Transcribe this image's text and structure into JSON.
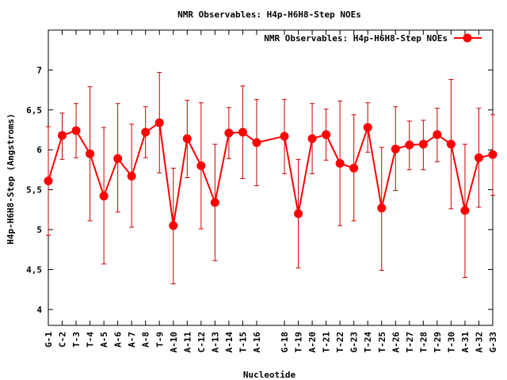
{
  "chart_data": {
    "type": "line",
    "title": "NMR Observables: H4p-H6H8-Step NOEs",
    "xlabel": "Nucleotide",
    "ylabel": "H4p-H6H8-Step (Angstroms)",
    "ylim": [
      3.8,
      7.5
    ],
    "yticks": [
      4,
      4.5,
      5,
      5.5,
      6,
      6.5,
      7
    ],
    "ytick_labels": [
      "4",
      "4,5",
      "5",
      "5,5",
      "6",
      "6,5",
      "7"
    ],
    "xlim": [
      1,
      33
    ],
    "legend": {
      "position": "top-right",
      "label": "NMR Observables: H4p-H6H8-Step NOEs"
    },
    "colors": {
      "series": "#ff0000",
      "errorbar": "#cc0000",
      "axis": "#000000"
    },
    "categories": [
      "G-1",
      "C-2",
      "T-3",
      "T-4",
      "A-5",
      "A-6",
      "A-7",
      "A-8",
      "T-9",
      "A-10",
      "A-11",
      "C-12",
      "A-13",
      "A-14",
      "T-15",
      "A-16",
      "G-18",
      "T-19",
      "A-20",
      "T-21",
      "T-22",
      "G-23",
      "T-24",
      "T-25",
      "A-26",
      "T-27",
      "T-28",
      "T-29",
      "T-30",
      "A-31",
      "A-32",
      "G-33"
    ],
    "series": [
      {
        "name": "NMR Observables: H4p-H6H8-Step NOEs",
        "x": [
          1,
          2,
          3,
          4,
          5,
          6,
          7,
          8,
          9,
          10,
          11,
          12,
          13,
          14,
          15,
          16,
          18,
          19,
          20,
          21,
          22,
          23,
          24,
          25,
          26,
          27,
          28,
          29,
          30,
          31,
          32,
          33
        ],
        "y": [
          5.61,
          6.18,
          6.24,
          5.95,
          5.42,
          5.89,
          5.67,
          6.22,
          6.34,
          5.05,
          6.14,
          5.8,
          5.34,
          6.21,
          6.22,
          6.09,
          6.17,
          5.2,
          6.14,
          6.19,
          5.83,
          5.77,
          6.28,
          5.27,
          6.01,
          6.06,
          6.07,
          6.19,
          6.07,
          5.24,
          5.9,
          5.94
        ],
        "err_low": [
          4.93,
          5.88,
          5.9,
          5.11,
          4.57,
          5.22,
          5.03,
          5.9,
          5.71,
          4.32,
          5.65,
          5.01,
          4.61,
          5.89,
          5.64,
          5.55,
          5.7,
          4.52,
          5.7,
          5.87,
          5.05,
          5.11,
          5.97,
          4.49,
          5.49,
          5.75,
          5.75,
          5.85,
          5.26,
          4.4,
          5.28,
          5.43
        ],
        "err_high": [
          6.29,
          6.46,
          6.58,
          6.79,
          6.28,
          6.58,
          6.32,
          6.54,
          6.97,
          5.77,
          6.62,
          6.59,
          6.07,
          6.53,
          6.8,
          6.63,
          6.63,
          5.88,
          6.58,
          6.51,
          6.61,
          6.44,
          6.59,
          6.03,
          6.54,
          6.36,
          6.37,
          6.52,
          6.88,
          6.07,
          6.52,
          6.44
        ]
      }
    ]
  }
}
